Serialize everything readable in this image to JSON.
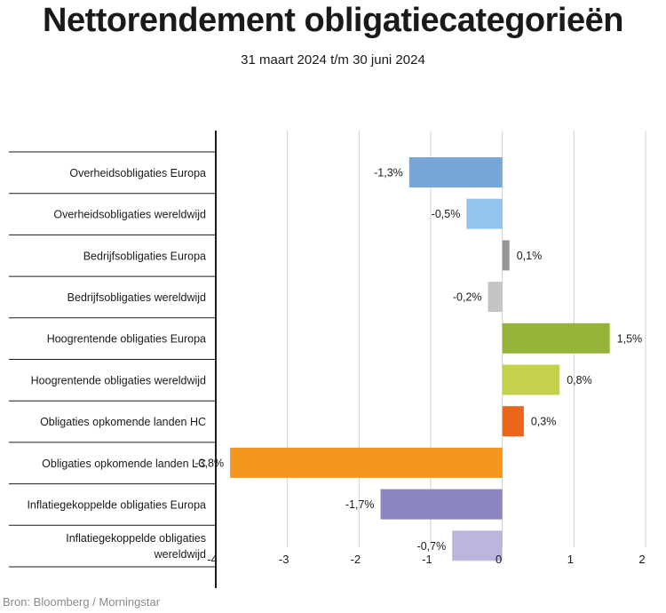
{
  "title": "Nettorendement obligatiecategorieën",
  "subtitle": "31 maart 2024 t/m 30 juni 2024",
  "source": "Bron: Bloomberg / Morningstar",
  "chart_data": {
    "type": "bar",
    "orientation": "horizontal",
    "categories": [
      "Overheidsobligaties Europa",
      "Overheidsobligaties wereldwijd",
      "Bedrijfsobligaties Europa",
      "Bedrijfsobligaties wereldwijd",
      "Hoogrentende obligaties Europa",
      "Hoogrentende obligaties wereldwijd",
      "Obligaties opkomende landen HC",
      "Obligaties opkomende landen LC",
      "Inflatiegekoppelde obligaties Europa",
      "Inflatiegekoppelde obligaties wereldwijd"
    ],
    "category_lines": [
      [
        "Overheidsobligaties Europa"
      ],
      [
        "Overheidsobligaties wereldwijd"
      ],
      [
        "Bedrijfsobligaties Europa"
      ],
      [
        "Bedrijfsobligaties wereldwijd"
      ],
      [
        "Hoogrentende obligaties Europa"
      ],
      [
        "Hoogrentende obligaties wereldwijd"
      ],
      [
        "Obligaties opkomende landen HC"
      ],
      [
        "Obligaties opkomende landen LC"
      ],
      [
        "Inflatiegekoppelde obligaties Europa"
      ],
      [
        "Inflatiegekoppelde obligaties",
        "wereldwijd"
      ]
    ],
    "values": [
      -1.3,
      -0.5,
      0.1,
      -0.2,
      1.5,
      0.8,
      0.3,
      -3.8,
      -1.7,
      -0.7
    ],
    "value_labels": [
      "-1,3%",
      "-0,5%",
      "0,1%",
      "-0,2%",
      "1,5%",
      "0,8%",
      "0,3%",
      "-3,8%",
      "-1,7%",
      "-0,7%"
    ],
    "colors": [
      "#77a7d6",
      "#92c4ee",
      "#939598",
      "#c3c4c6",
      "#96b43a",
      "#c3d24a",
      "#e9661b",
      "#f6951f",
      "#8b86c0",
      "#bab6dc"
    ],
    "xlim": [
      -4,
      2
    ],
    "xticks": [
      -4,
      -3,
      -2,
      -1,
      0,
      1,
      2
    ],
    "xtick_labels": [
      "-4",
      "-3",
      "-2",
      "-1",
      "0",
      "1",
      "2"
    ],
    "grid": true,
    "legend": "none"
  }
}
